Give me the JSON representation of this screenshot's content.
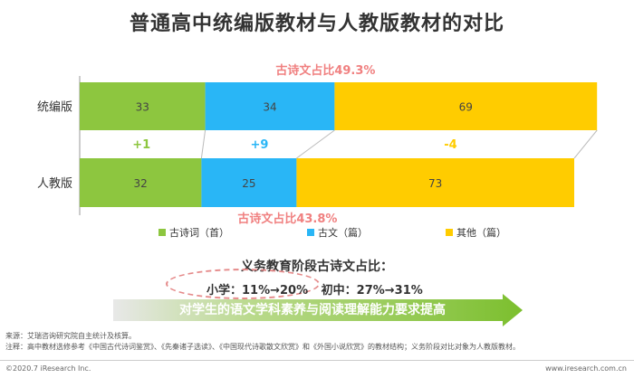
{
  "title": "普通高中统编版教材与人教版教材的对比",
  "chart_data": {
    "type": "bar",
    "orientation": "horizontal",
    "stacked": true,
    "categories": [
      "统编版",
      "人教版"
    ],
    "series": [
      {
        "name": "古诗词（首）",
        "values": [
          33,
          32
        ],
        "color": "#8dc63f"
      },
      {
        "name": "古文（篇）",
        "values": [
          34,
          25
        ],
        "color": "#29b6f6"
      },
      {
        "name": "其他（篇）",
        "values": [
          69,
          73
        ],
        "color": "#ffcc00"
      }
    ],
    "diffs": [
      "+1",
      "+9",
      "-4"
    ],
    "diff_colors": [
      "#8dc63f",
      "#29b6f6",
      "#ffcc00"
    ],
    "annotations": [
      "古诗文占比49.3%",
      "古诗文占比43.8%"
    ],
    "annotation_color": "#f08080"
  },
  "summary": {
    "heading": "义务教育阶段古诗文占比：",
    "primary": "小学：11%→20%",
    "middle": "初中：27%→31%",
    "banner": "对学生的语文学科素养与阅读理解能力要求提高",
    "banner_color": "#8dc63f"
  },
  "notes": {
    "source": "来源：艾瑞咨询研究院自主统计及核算。",
    "note": "注释：高中教材选修参考《中国古代诗词鉴赏》、《先秦诸子选读》、《中国现代诗歌散文欣赏》和《外国小说欣赏》的教材结构；义务阶段对比对象为人教版教材。"
  },
  "footer": {
    "left": "©2020.7 iResearch Inc.",
    "right": "www.iresearch.com.cn"
  }
}
